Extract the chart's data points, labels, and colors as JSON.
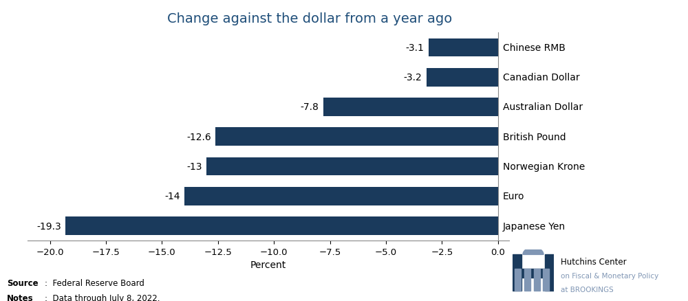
{
  "title": "Change against the dollar from a year ago",
  "title_color": "#1f4e79",
  "title_fontsize": 14,
  "categories": [
    "Chinese RMB",
    "Canadian Dollar",
    "Australian Dollar",
    "British Pound",
    "Norwegian Krone",
    "Euro",
    "Japanese Yen"
  ],
  "values": [
    -3.1,
    -3.2,
    -7.8,
    -12.6,
    -13.0,
    -14.0,
    -19.3
  ],
  "bar_color": "#1a3a5c",
  "xlim": [
    -21.0,
    0.5
  ],
  "xticks": [
    -20.0,
    -17.5,
    -15.0,
    -12.5,
    -10.0,
    -7.5,
    -5.0,
    -2.5,
    0.0
  ],
  "xlabel": "Percent",
  "xlabel_fontsize": 10,
  "tick_fontsize": 9.5,
  "value_label_fontsize": 10,
  "cat_label_fontsize": 10,
  "value_labels": [
    "-3.1",
    "-3.2",
    "-7.8",
    "-12.6",
    "-13",
    "-14",
    "-19.3"
  ],
  "source_bold": "Source",
  "source_text": ":  Federal Reserve Board",
  "notes_bold": "Notes",
  "notes_text": ":  Data through July 8, 2022.",
  "footnote_fontsize": 8.5,
  "hutchins_line1": "Hutchins Center",
  "hutchins_line2": "on Fiscal & Monetary Policy",
  "hutchins_line3": "at BROOKINGS",
  "hutchins_color1": "#000000",
  "hutchins_color2": "#8096b4",
  "logo_dark": "#1a3a5c",
  "logo_light": "#8096b4",
  "background_color": "#ffffff",
  "bar_height": 0.62
}
